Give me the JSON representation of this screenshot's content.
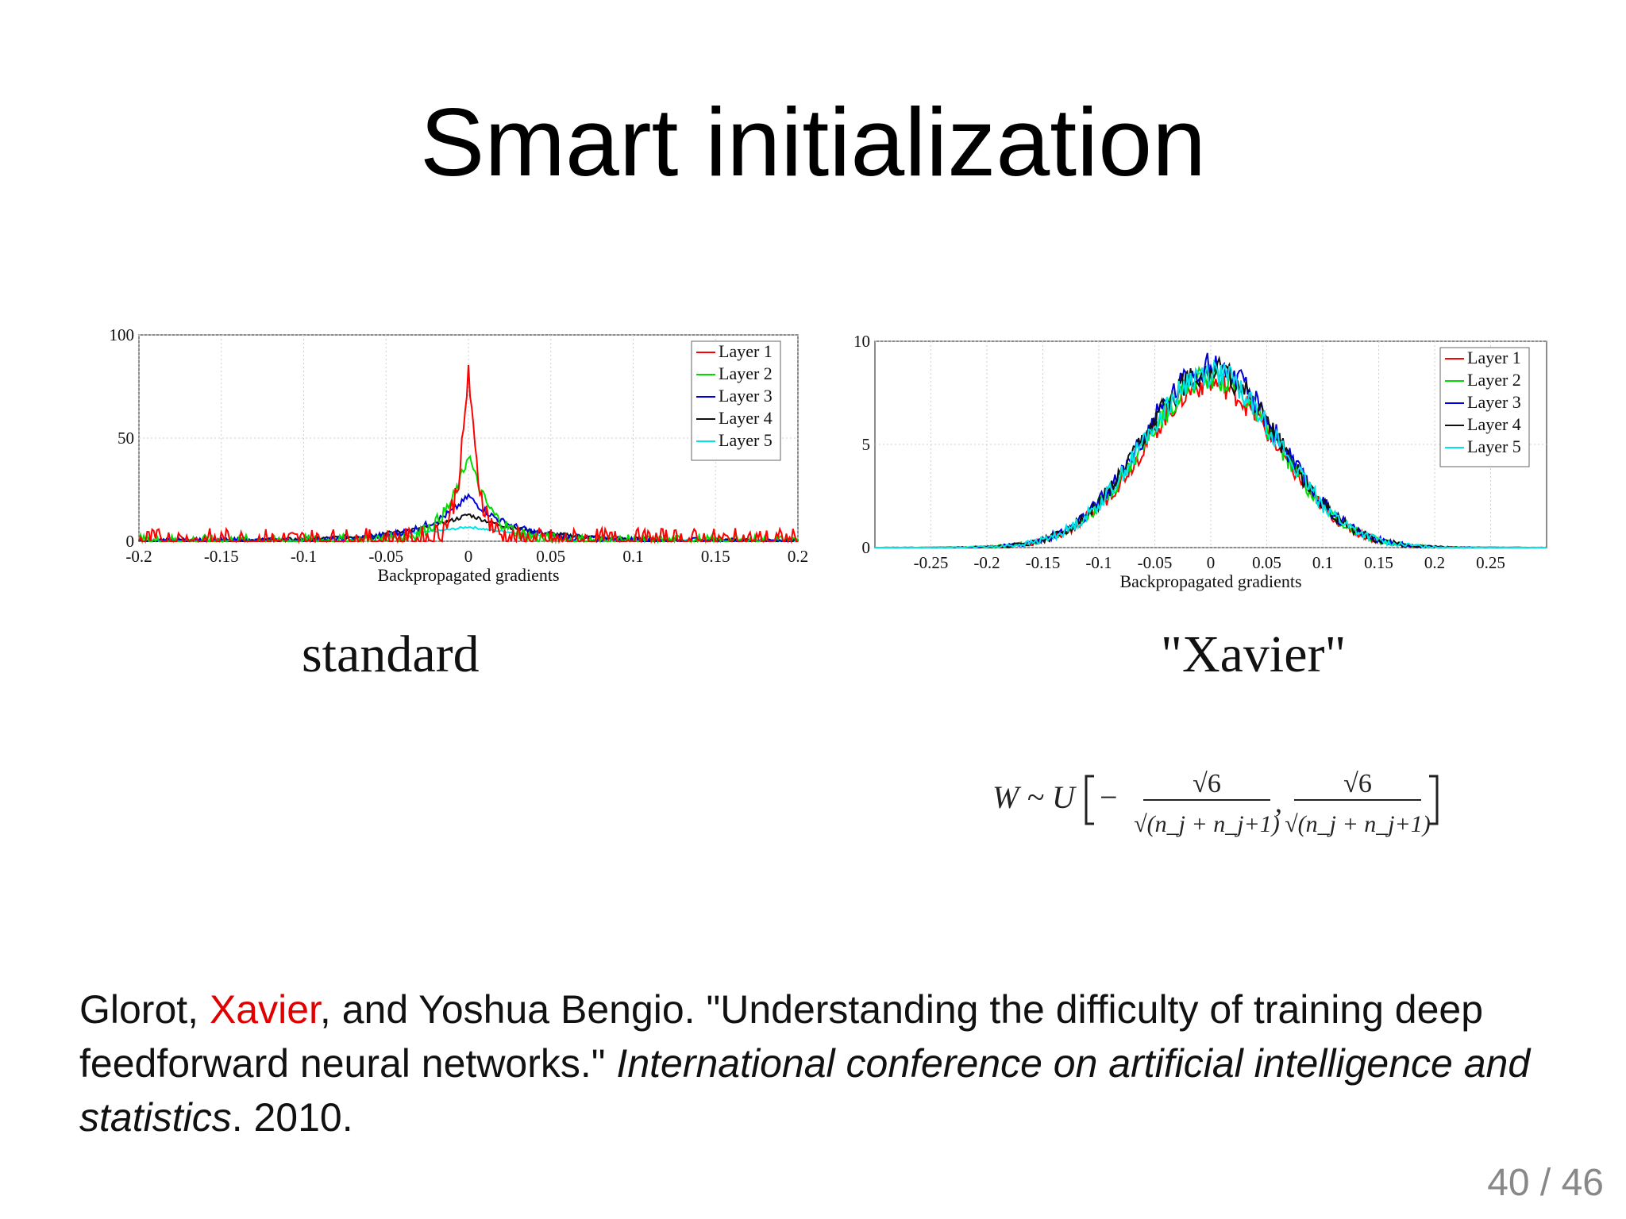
{
  "slide": {
    "title": "Smart initialization",
    "page_number": "40 / 46"
  },
  "captions": {
    "left": "standard",
    "right": "\"Xavier\""
  },
  "formula": {
    "lhs": "W ~ U",
    "numerator": "√6",
    "denominator": "√(n_j + n_j+1)"
  },
  "citation": {
    "part1": "Glorot, ",
    "highlight": "Xavier",
    "part2": ", and Yoshua Bengio. \"Understanding the difficulty of training deep feedforward neural networks.\" ",
    "venue": "International conference on artificial intelligence and statistics",
    "part3": ". 2010.",
    "highlight_color": "#e00000"
  },
  "chart_data": [
    {
      "type": "line",
      "xlabel": "Backpropagated gradients",
      "ylabel": "",
      "xlim": [
        -0.2,
        0.2
      ],
      "ylim": [
        0,
        100
      ],
      "xticks": [
        "-0.2",
        "-0.15",
        "-0.1",
        "-0.05",
        "0",
        "0.05",
        "0.1",
        "0.15",
        "0.2"
      ],
      "yticks": [
        "0",
        "50",
        "100"
      ],
      "grid": true,
      "legend_position": "top-right",
      "series": [
        {
          "name": "Layer 1",
          "color": "#ff0000",
          "peak": 85,
          "width": 0.006
        },
        {
          "name": "Layer 2",
          "color": "#00dd00",
          "peak": 43,
          "width": 0.013
        },
        {
          "name": "Layer 3",
          "color": "#0000dd",
          "peak": 22,
          "width": 0.025
        },
        {
          "name": "Layer 4",
          "color": "#111111",
          "peak": 13,
          "width": 0.04
        },
        {
          "name": "Layer 5",
          "color": "#00e5e5",
          "peak": 7,
          "width": 0.055
        }
      ]
    },
    {
      "type": "line",
      "xlabel": "Backpropagated gradients",
      "ylabel": "",
      "xlim": [
        -0.3,
        0.3
      ],
      "ylim": [
        0,
        10
      ],
      "xticks": [
        "-0.25",
        "-0.2",
        "-0.15",
        "-0.1",
        "-0.05",
        "0",
        "0.05",
        "0.1",
        "0.15",
        "0.2",
        "0.25"
      ],
      "yticks": [
        "0",
        "5",
        "10"
      ],
      "grid": true,
      "legend_position": "top-right",
      "series": [
        {
          "name": "Layer 1",
          "color": "#ff0000",
          "peak": 8,
          "width": 0.06
        },
        {
          "name": "Layer 2",
          "color": "#00dd00",
          "peak": 8.3,
          "width": 0.06
        },
        {
          "name": "Layer 3",
          "color": "#0000dd",
          "peak": 8.8,
          "width": 0.06
        },
        {
          "name": "Layer 4",
          "color": "#111111",
          "peak": 8.6,
          "width": 0.06
        },
        {
          "name": "Layer 5",
          "color": "#00e5e5",
          "peak": 8.5,
          "width": 0.06
        }
      ]
    }
  ]
}
